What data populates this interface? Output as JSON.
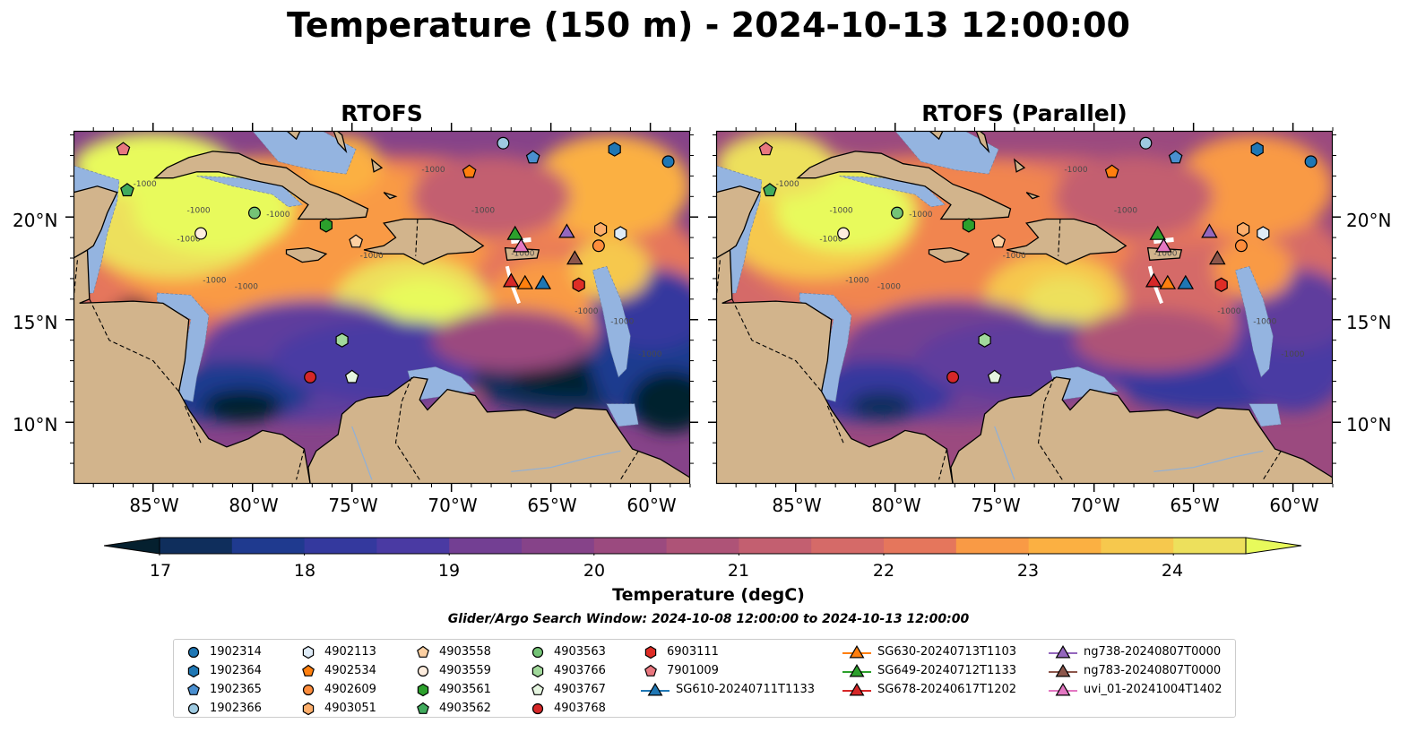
{
  "figure": {
    "title": "Temperature (150 m) - 2024-10-13 12:00:00",
    "panels": [
      {
        "name": "rtofs",
        "title": "RTOFS"
      },
      {
        "name": "rtofs-parallel",
        "title": "RTOFS (Parallel)"
      }
    ],
    "lat_labels": [
      "20°N",
      "15°N",
      "10°N"
    ],
    "lon_labels": [
      "85°W",
      "80°W",
      "75°W",
      "70°W",
      "65°W",
      "60°W"
    ],
    "contour_label": "-1000",
    "colorbar": {
      "label": "Temperature (degC)",
      "ticks": [
        "17",
        "18",
        "19",
        "20",
        "21",
        "22",
        "23",
        "24"
      ],
      "range": [
        17,
        24.5
      ],
      "extend": "both",
      "colormap": "thermal",
      "colors": [
        "#05202f",
        "#0f2e5c",
        "#1f3a8f",
        "#34399e",
        "#4a3aa3",
        "#5f3d9d",
        "#733f93",
        "#864389",
        "#9b4a7f",
        "#ae5377",
        "#c35f70",
        "#d56a68",
        "#e5765c",
        "#f1854f",
        "#f99a45",
        "#fbb042",
        "#f6c84d",
        "#ede05c",
        "#e8fa5b"
      ]
    },
    "search_window": "Glider/Argo Search Window: 2024-10-08 12:00:00 to 2024-10-13 12:00:00",
    "land_color": "#d2b48c",
    "shelf_color": "#94b4e0"
  },
  "legend": {
    "columns": [
      [
        {
          "label": "1902314",
          "marker": "circle",
          "color": "#1f77b4"
        },
        {
          "label": "1902364",
          "marker": "hexagon",
          "color": "#1f77b4"
        },
        {
          "label": "1902365",
          "marker": "pentagon",
          "color": "#4a8fd0"
        },
        {
          "label": "1902366",
          "marker": "circle",
          "color": "#9ecae1"
        }
      ],
      [
        {
          "label": "4902113",
          "marker": "hexagon",
          "color": "#deebf7"
        },
        {
          "label": "4902534",
          "marker": "pentagon",
          "color": "#ff7f0e"
        },
        {
          "label": "4902609",
          "marker": "circle",
          "color": "#fd8d3c"
        },
        {
          "label": "4903051",
          "marker": "hexagon",
          "color": "#fdae6b"
        }
      ],
      [
        {
          "label": "4903558",
          "marker": "pentagon",
          "color": "#fdd0a2"
        },
        {
          "label": "4903559",
          "marker": "circle",
          "color": "#feedde"
        },
        {
          "label": "4903561",
          "marker": "hexagon",
          "color": "#2ca02c"
        },
        {
          "label": "4903562",
          "marker": "pentagon",
          "color": "#41ab5d"
        }
      ],
      [
        {
          "label": "4903563",
          "marker": "circle",
          "color": "#74c476"
        },
        {
          "label": "4903766",
          "marker": "hexagon",
          "color": "#a1d99b"
        },
        {
          "label": "4903767",
          "marker": "pentagon",
          "color": "#e5f5e0"
        },
        {
          "label": "4903768",
          "marker": "circle",
          "color": "#d62728"
        }
      ],
      [
        {
          "label": "6903111",
          "marker": "hexagon",
          "color": "#de2d26"
        },
        {
          "label": "7901009",
          "marker": "pentagon",
          "color": "#e9777f"
        },
        {
          "label": "SG610-20240711T1133",
          "marker": "triangle-line",
          "color": "#1f77b4"
        }
      ],
      [
        {
          "label": "SG630-20240713T1103",
          "marker": "triangle-line",
          "color": "#ff7f0e"
        },
        {
          "label": "SG649-20240712T1133",
          "marker": "triangle-line",
          "color": "#2ca02c"
        },
        {
          "label": "SG678-20240617T1202",
          "marker": "triangle-line",
          "color": "#d62728"
        }
      ],
      [
        {
          "label": "ng738-20240807T0000",
          "marker": "triangle-line",
          "color": "#9467bd"
        },
        {
          "label": "ng783-20240807T0000",
          "marker": "triangle-line",
          "color": "#8c564b"
        },
        {
          "label": "uvi_01-20241004T1402",
          "marker": "triangle-line",
          "color": "#e377c2"
        }
      ]
    ]
  },
  "map": {
    "lon_range": [
      -89,
      -58
    ],
    "lat_range": [
      7,
      24.2
    ],
    "markers": [
      {
        "id": "1902314",
        "lon": -59.1,
        "lat": 22.7,
        "marker": "circle",
        "color": "#1f77b4"
      },
      {
        "id": "1902364",
        "lon": -61.8,
        "lat": 23.3,
        "marker": "hexagon",
        "color": "#1f77b4"
      },
      {
        "id": "1902365",
        "lon": -65.9,
        "lat": 22.9,
        "marker": "pentagon",
        "color": "#4a8fd0"
      },
      {
        "id": "1902366",
        "lon": -67.4,
        "lat": 23.6,
        "marker": "circle",
        "color": "#9ecae1"
      },
      {
        "id": "4902113",
        "lon": -61.5,
        "lat": 19.2,
        "marker": "hexagon",
        "color": "#deebf7"
      },
      {
        "id": "4902534",
        "lon": -69.1,
        "lat": 22.2,
        "marker": "pentagon",
        "color": "#ff7f0e"
      },
      {
        "id": "4902609",
        "lon": -62.6,
        "lat": 18.6,
        "marker": "circle",
        "color": "#fd8d3c"
      },
      {
        "id": "4903051",
        "lon": -62.5,
        "lat": 19.4,
        "marker": "hexagon",
        "color": "#fdae6b"
      },
      {
        "id": "4903558",
        "lon": -74.8,
        "lat": 18.8,
        "marker": "pentagon",
        "color": "#fdd0a2"
      },
      {
        "id": "4903559",
        "lon": -82.6,
        "lat": 19.2,
        "marker": "circle",
        "color": "#feedde"
      },
      {
        "id": "4903561",
        "lon": -76.3,
        "lat": 19.6,
        "marker": "hexagon",
        "color": "#2ca02c"
      },
      {
        "id": "4903562",
        "lon": -86.3,
        "lat": 21.3,
        "marker": "pentagon",
        "color": "#41ab5d"
      },
      {
        "id": "4903563",
        "lon": -79.9,
        "lat": 20.2,
        "marker": "circle",
        "color": "#74c476"
      },
      {
        "id": "4903766",
        "lon": -75.5,
        "lat": 14.0,
        "marker": "hexagon",
        "color": "#a1d99b"
      },
      {
        "id": "4903767",
        "lon": -75.0,
        "lat": 12.2,
        "marker": "pentagon",
        "color": "#e5f5e0"
      },
      {
        "id": "4903768",
        "lon": -77.1,
        "lat": 12.2,
        "marker": "circle",
        "color": "#d62728"
      },
      {
        "id": "6903111",
        "lon": -63.6,
        "lat": 16.7,
        "marker": "hexagon",
        "color": "#de2d26"
      },
      {
        "id": "7901009",
        "lon": -86.5,
        "lat": 23.3,
        "marker": "pentagon",
        "color": "#e9777f"
      },
      {
        "id": "SG610-20240711T1133",
        "lon": -65.4,
        "lat": 16.8,
        "marker": "triangle",
        "color": "#1f77b4"
      },
      {
        "id": "SG630-20240713T1103",
        "lon": -66.3,
        "lat": 16.8,
        "marker": "triangle",
        "color": "#ff7f0e"
      },
      {
        "id": "SG649-20240712T1133",
        "lon": -66.8,
        "lat": 19.2,
        "marker": "triangle",
        "color": "#2ca02c"
      },
      {
        "id": "SG678-20240617T1202",
        "lon": -67.0,
        "lat": 16.9,
        "marker": "triangle",
        "color": "#d62728"
      },
      {
        "id": "ng738-20240807T0000",
        "lon": -64.2,
        "lat": 19.3,
        "marker": "triangle",
        "color": "#9467bd"
      },
      {
        "id": "ng783-20240807T0000",
        "lon": -63.8,
        "lat": 18.0,
        "marker": "triangle",
        "color": "#8c564b"
      },
      {
        "id": "uvi_01-20241004T1402",
        "lon": -66.5,
        "lat": 18.6,
        "marker": "triangle",
        "color": "#e377c2"
      }
    ]
  }
}
